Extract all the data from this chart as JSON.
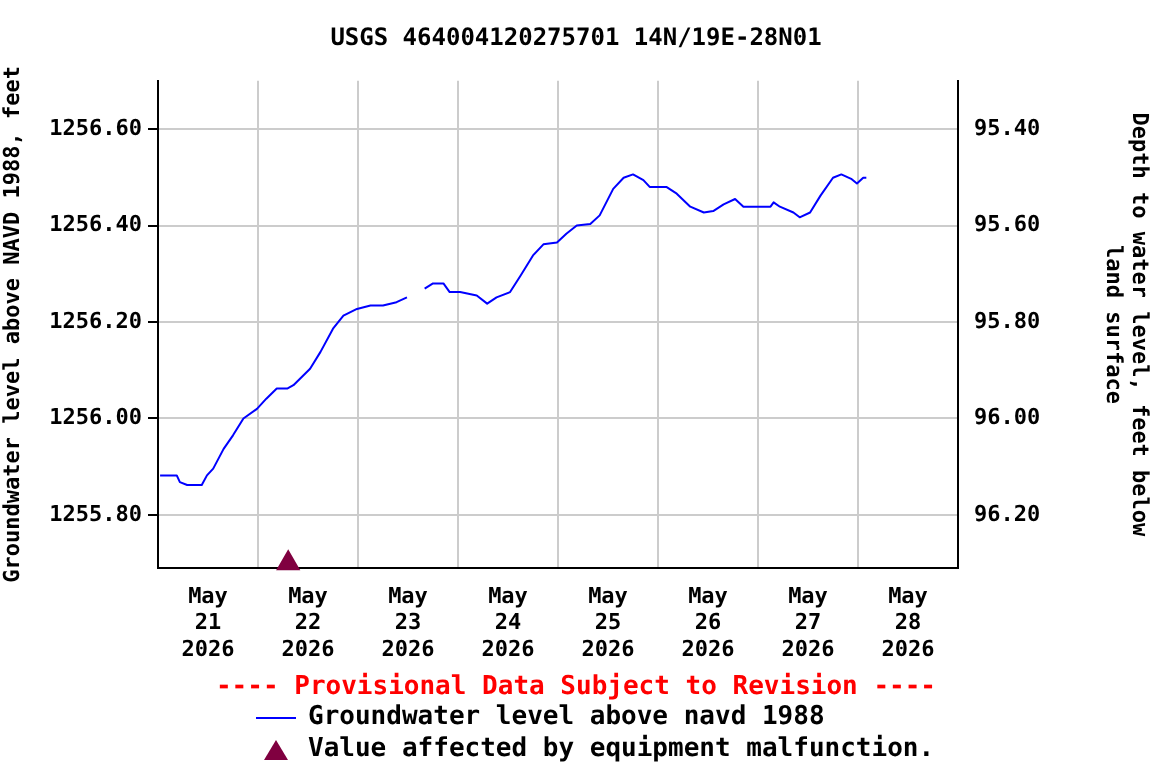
{
  "chart_data": {
    "type": "line",
    "title": "USGS 464004120275701 14N/19E-28N01",
    "ylabel": "Groundwater level above NAVD 1988, feet",
    "y2label": "Depth to water level, feet below land surface",
    "annotations": [
      "---- Provisional Data Subject to Revision ----"
    ],
    "xlim": [
      "2026-05-21T00:00",
      "2026-05-29T00:00"
    ],
    "xticks": [
      {
        "value": "2026-05-21T12:00",
        "label": "May\n21\n2026"
      },
      {
        "value": "2026-05-22T00:00",
        "label": null
      },
      {
        "value": "2026-05-22T12:00",
        "label": "May\n22\n2026"
      },
      {
        "value": "2026-05-23T00:00",
        "label": null
      },
      {
        "value": "2026-05-23T12:00",
        "label": "May\n23\n2026"
      },
      {
        "value": "2026-05-24T00:00",
        "label": null
      },
      {
        "value": "2026-05-24T12:00",
        "label": "May\n24\n2026"
      },
      {
        "value": "2026-05-25T00:00",
        "label": null
      },
      {
        "value": "2026-05-25T12:00",
        "label": "May\n25\n2026"
      },
      {
        "value": "2026-05-26T00:00",
        "label": null
      },
      {
        "value": "2026-05-26T12:00",
        "label": "May\n26\n2026"
      },
      {
        "value": "2026-05-27T00:00",
        "label": null
      },
      {
        "value": "2026-05-27T12:00",
        "label": "May\n27\n2026"
      },
      {
        "value": "2026-05-28T00:00",
        "label": null
      },
      {
        "value": "2026-05-28T12:00",
        "label": "May\n28\n2026"
      }
    ],
    "ylim": [
      1255.69,
      1256.7
    ],
    "yticks": [
      {
        "value": 1255.8,
        "label": "1255.80"
      },
      {
        "value": 1256.0,
        "label": "1256.00"
      },
      {
        "value": 1256.2,
        "label": "1256.20"
      },
      {
        "value": 1256.4,
        "label": "1256.40"
      },
      {
        "value": 1256.6,
        "label": "1256.60"
      }
    ],
    "y2lim": [
      96.31,
      95.3
    ],
    "y2ticks": [
      {
        "value": 96.2,
        "label": "96.20"
      },
      {
        "value": 96.0,
        "label": "96.00"
      },
      {
        "value": 95.8,
        "label": "95.80"
      },
      {
        "value": 95.6,
        "label": "95.60"
      },
      {
        "value": 95.4,
        "label": "95.40"
      }
    ],
    "grid": true,
    "legend": "bottom",
    "series": [
      {
        "name": "Groundwater level above navd 1988",
        "color": "#0000ff",
        "marker": "none",
        "line_style": "solid",
        "x": [
          "2026-05-21T00:30",
          "2026-05-21T04:30",
          "2026-05-21T05:15",
          "2026-05-21T07:00",
          "2026-05-21T10:30",
          "2026-05-21T11:45",
          "2026-05-21T13:15",
          "2026-05-21T15:45",
          "2026-05-21T18:00",
          "2026-05-21T20:30",
          "2026-05-21T23:45",
          "2026-05-22T02:00",
          "2026-05-22T04:30",
          "2026-05-22T07:00",
          "2026-05-22T08:30",
          "2026-05-22T12:30",
          "2026-05-22T15:00",
          "2026-05-22T18:00",
          "2026-05-22T20:30",
          "2026-05-22T23:45",
          "2026-05-23T03:00",
          "2026-05-23T06:00",
          "2026-05-23T09:15",
          "2026-05-23T11:45",
          "2026-05-23T14:00",
          "2026-05-23T16:00",
          "2026-05-23T18:00",
          "2026-05-23T20:30",
          "2026-05-23T22:00",
          "2026-05-24T00:30",
          "2026-05-24T04:30",
          "2026-05-24T07:00",
          "2026-05-24T09:15",
          "2026-05-24T12:30",
          "2026-05-24T15:00",
          "2026-05-24T18:00",
          "2026-05-24T20:30",
          "2026-05-24T23:45",
          "2026-05-25T02:00",
          "2026-05-25T04:30",
          "2026-05-25T07:45",
          "2026-05-25T10:00",
          "2026-05-25T13:15",
          "2026-05-25T15:45",
          "2026-05-25T18:00",
          "2026-05-25T20:30",
          "2026-05-25T22:00",
          "2026-05-26T02:00",
          "2026-05-26T04:30",
          "2026-05-26T07:45",
          "2026-05-26T11:00",
          "2026-05-26T13:15",
          "2026-05-26T15:45",
          "2026-05-26T18:30",
          "2026-05-26T20:30",
          "2026-05-27T03:00",
          "2026-05-27T03:45",
          "2026-05-27T05:15",
          "2026-05-27T08:30",
          "2026-05-27T10:00",
          "2026-05-27T12:30",
          "2026-05-27T15:00",
          "2026-05-27T18:00",
          "2026-05-27T20:00",
          "2026-05-27T22:30",
          "2026-05-27T23:45",
          "2026-05-28T01:15",
          "2026-05-28T02:00"
        ],
        "values": [
          1255.882,
          1255.882,
          1255.868,
          1255.862,
          1255.862,
          1255.882,
          1255.896,
          1255.937,
          1255.965,
          1256.0,
          1256.02,
          1256.041,
          1256.062,
          1256.062,
          1256.069,
          1256.103,
          1256.138,
          1256.186,
          1256.213,
          1256.227,
          1256.234,
          1256.234,
          1256.241,
          1256.251,
          null,
          1256.269,
          1256.28,
          1256.28,
          1256.262,
          1256.262,
          1256.255,
          1256.238,
          1256.251,
          1256.262,
          1256.296,
          1256.338,
          1256.361,
          1256.365,
          1256.383,
          1256.4,
          1256.403,
          1256.421,
          1256.476,
          1256.499,
          1256.506,
          1256.494,
          1256.48,
          1256.48,
          1256.466,
          1256.439,
          1256.427,
          1256.43,
          1256.444,
          1256.455,
          1256.439,
          1256.439,
          1256.448,
          1256.439,
          1256.427,
          1256.417,
          1256.427,
          1256.462,
          1256.499,
          1256.506,
          1256.496,
          1256.487,
          1256.499,
          1256.499
        ]
      },
      {
        "name": "Value affected by equipment malfunction.",
        "type": "scatter",
        "color": "#800040",
        "marker": "triangle",
        "x": [
          "2026-05-22T07:15"
        ],
        "values": [
          1255.7
        ]
      }
    ]
  }
}
